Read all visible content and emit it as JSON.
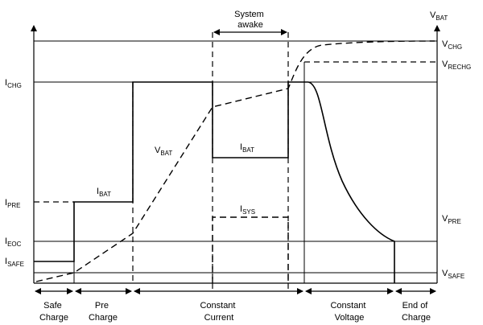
{
  "labels": {
    "system_awake": [
      "System",
      "awake"
    ],
    "vbat_axis": {
      "main": "V",
      "sub": "BAT"
    },
    "left": [
      {
        "main": "I",
        "sub": "CHG"
      },
      {
        "main": "I",
        "sub": "PRE"
      },
      {
        "main": "I",
        "sub": "EOC"
      },
      {
        "main": "I",
        "sub": "SAFE"
      }
    ],
    "right": [
      {
        "main": "V",
        "sub": "CHG"
      },
      {
        "main": "V",
        "sub": "RECHG"
      },
      {
        "main": "V",
        "sub": "PRE"
      },
      {
        "main": "V",
        "sub": "SAFE"
      }
    ],
    "curves": {
      "ibat_pre": {
        "main": "I",
        "sub": "BAT"
      },
      "vbat": {
        "main": "V",
        "sub": "BAT"
      },
      "ibat_awake": {
        "main": "I",
        "sub": "BAT"
      },
      "isys": {
        "main": "I",
        "sub": "SYS"
      }
    }
  },
  "phases": [
    [
      "Safe",
      "Charge"
    ],
    [
      "Pre",
      "Charge"
    ],
    [
      "Constant",
      "Current"
    ],
    [
      "Constant",
      "Voltage"
    ],
    [
      "End of",
      "Charge"
    ]
  ]
}
